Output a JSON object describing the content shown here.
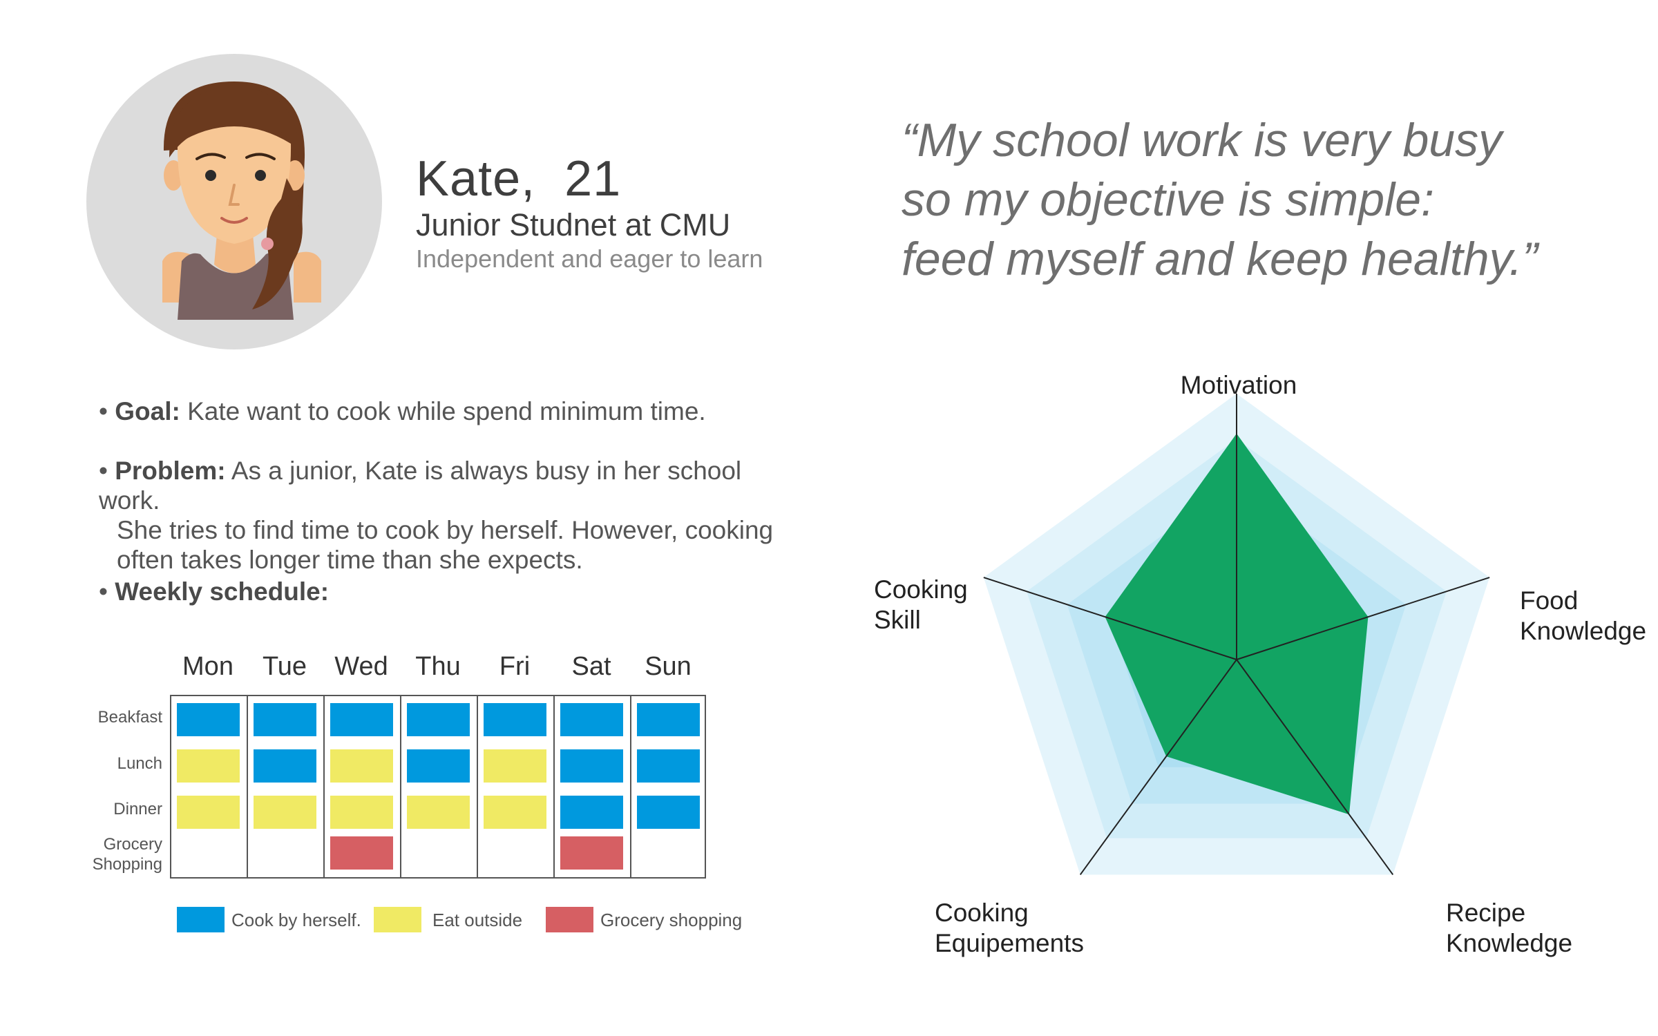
{
  "profile": {
    "name": "Kate,  21",
    "role": "Junior Studnet at CMU",
    "tagline": "Independent and eager to learn"
  },
  "quote": "“My school work is very busy\nso my objective is simple:\nfeed myself and keep healthy.”",
  "bullets": {
    "goal_label": "Goal:",
    "goal_text": " Kate want to cook while spend minimum time.",
    "problem_label": "Problem:",
    "problem_text": " As a junior, Kate is always busy in her school work.",
    "problem_cont1": "She tries to find time to cook by herself. However, cooking",
    "problem_cont2": "often takes longer time than she expects.",
    "schedule_label": "Weekly schedule:"
  },
  "schedule": {
    "days": [
      "Mon",
      "Tue",
      "Wed",
      "Thu",
      "Fri",
      "Sat",
      "Sun"
    ],
    "rows": [
      "Beakfast",
      "Lunch",
      "Dinner",
      "Grocery\nShopping"
    ],
    "cells": [
      [
        "cook",
        "cook",
        "cook",
        "cook",
        "cook",
        "cook",
        "cook"
      ],
      [
        "outside",
        "cook",
        "outside",
        "cook",
        "outside",
        "cook",
        "cook"
      ],
      [
        "outside",
        "outside",
        "outside",
        "outside",
        "outside",
        "cook",
        "cook"
      ],
      [
        "",
        "",
        "grocery",
        "",
        "",
        "grocery",
        ""
      ]
    ],
    "colors": {
      "cook": "#0099de",
      "outside": "#f0ea64",
      "grocery": "#d65f63"
    },
    "legend": [
      {
        "key": "cook",
        "label": "Cook by herself."
      },
      {
        "key": "outside",
        "label": "Eat outside"
      },
      {
        "key": "grocery",
        "label": "Grocery shopping"
      }
    ]
  },
  "chart_data": {
    "type": "radar",
    "axes": [
      "Motivation",
      "Food\nKnowledge",
      "Recipe\nKnowledge",
      "Cooking\nEquipements",
      "Cooking\nSkill"
    ],
    "max": 1.0,
    "rings": [
      1.0,
      0.83,
      0.67,
      0.5
    ],
    "values": [
      0.85,
      0.52,
      0.72,
      0.45,
      0.52
    ],
    "fill_color": "#12a463",
    "ring_colors": [
      "#e4f4fb",
      "#d1edf8",
      "#bfe6f5",
      "#aedff2"
    ]
  }
}
